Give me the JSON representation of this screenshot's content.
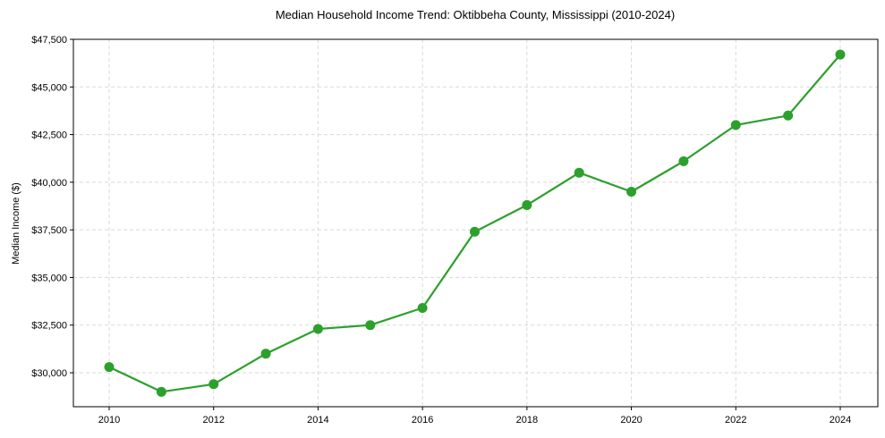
{
  "chart_data": {
    "type": "line",
    "title": "Median Household Income Trend: Oktibbeha County, Mississippi (2010-2024)",
    "xlabel": "",
    "ylabel": "Median Income ($)",
    "x": [
      2010,
      2011,
      2012,
      2013,
      2014,
      2015,
      2016,
      2017,
      2018,
      2019,
      2020,
      2021,
      2022,
      2023,
      2024
    ],
    "series": [
      {
        "name": "Median Household Income",
        "color": "#2ca02c",
        "marker": "circle",
        "values": [
          30300,
          29000,
          29400,
          31000,
          32300,
          32500,
          33400,
          37400,
          38800,
          40500,
          39500,
          41100,
          43000,
          43500,
          46700
        ]
      }
    ],
    "xticks": [
      2010,
      2012,
      2014,
      2016,
      2018,
      2020,
      2022,
      2024
    ],
    "yticks": [
      30000,
      32500,
      35000,
      37500,
      40000,
      42500,
      45000,
      47500
    ],
    "ytick_labels": [
      "$30,000",
      "$32,500",
      "$35,000",
      "$37,500",
      "$40,000",
      "$42,500",
      "$45,000",
      "$47,500"
    ],
    "xlim": [
      2009.3,
      2024.7
    ],
    "ylim": [
      28000,
      47500
    ],
    "grid": true,
    "grid_style": "dashed",
    "legend": null
  },
  "colors": {
    "line": "#2ca02c",
    "grid": "#d9d9d9",
    "frame": "#000000"
  }
}
